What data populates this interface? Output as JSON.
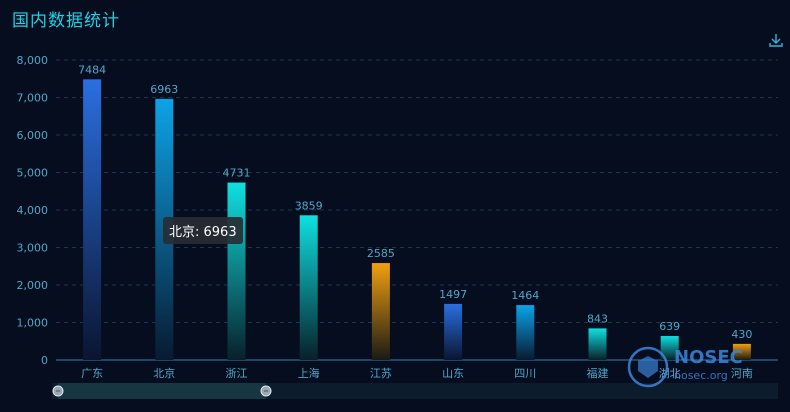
{
  "title": "国内数据统计",
  "download_icon": "download-icon",
  "tooltip": {
    "label": "北京: 6963"
  },
  "watermark": {
    "brand": "NOSEC",
    "url": "nosec.org"
  },
  "colors": {
    "background": "#050d1f",
    "title": "#19d4e6",
    "axis_text": "#4ea7c9",
    "label_text": "#4ea7c9",
    "blue_top": "#2a6fe0",
    "cyan_top": "#0fe0e0",
    "orange_top": "#f0a010",
    "sky_top": "#0ca3e8"
  },
  "chart_data": {
    "type": "bar",
    "title": "国内数据统计",
    "categories": [
      "广东",
      "北京",
      "浙江",
      "上海",
      "江苏",
      "山东",
      "四川",
      "福建",
      "湖北",
      "河南"
    ],
    "values": [
      7484,
      6963,
      4731,
      3859,
      2585,
      1497,
      1464,
      843,
      639,
      430
    ],
    "bar_styles": [
      "blue",
      "sky",
      "cyan",
      "cyan",
      "orange",
      "blue",
      "sky",
      "cyan",
      "cyan",
      "orange"
    ],
    "ylim": [
      0,
      8000
    ],
    "yticks": [
      0,
      1000,
      2000,
      3000,
      4000,
      5000,
      6000,
      7000,
      8000
    ],
    "ytick_labels": [
      "0",
      "1,000",
      "2,000",
      "3,000",
      "4,000",
      "5,000",
      "6,000",
      "7,000",
      "8,000"
    ],
    "grid": true,
    "xlabel": "",
    "ylabel": ""
  }
}
